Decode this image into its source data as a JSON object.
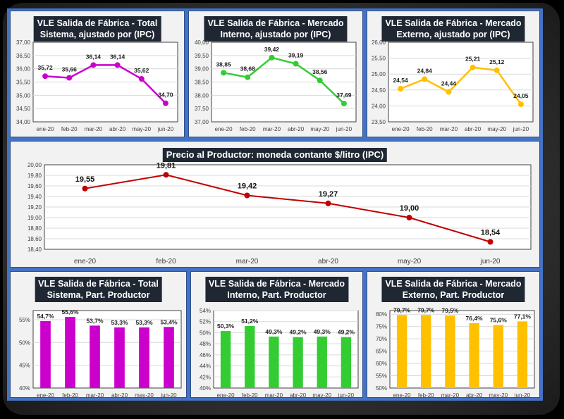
{
  "colors": {
    "frame": "#4472c4",
    "magenta": "#cc00cc",
    "green": "#33cc33",
    "gold": "#ffc000",
    "red": "#c00000"
  },
  "chart_data": [
    {
      "id": "total-ipc",
      "type": "line",
      "title_line1": "VLE Salida de Fábrica - Total",
      "title_line2": "Sistema, ajustado por (IPC)",
      "categories": [
        "ene-20",
        "feb-20",
        "mar-20",
        "abr-20",
        "may-20",
        "jun-20"
      ],
      "values": [
        35.72,
        35.66,
        36.14,
        36.14,
        35.62,
        34.7
      ],
      "labels": [
        "35,72",
        "35,66",
        "36,14",
        "36,14",
        "35,62",
        "34,70"
      ],
      "ylim": [
        34.0,
        37.0
      ],
      "yticks": [
        "34,00",
        "34,50",
        "35,00",
        "35,50",
        "36,00",
        "36,50",
        "37,00"
      ],
      "color_key": "magenta",
      "grid": true
    },
    {
      "id": "interno-ipc",
      "type": "line",
      "title_line1": "VLE Salida de Fábrica - Mercado",
      "title_line2": "Interno, ajustado por (IPC)",
      "categories": [
        "ene-20",
        "feb-20",
        "mar-20",
        "abr-20",
        "may-20",
        "jun-20"
      ],
      "values": [
        38.85,
        38.68,
        39.42,
        39.19,
        38.56,
        37.69
      ],
      "labels": [
        "38,85",
        "38,68",
        "39,42",
        "39,19",
        "38,56",
        "37,69"
      ],
      "ylim": [
        37.0,
        40.0
      ],
      "yticks": [
        "37,00",
        "37,50",
        "38,00",
        "38,50",
        "39,00",
        "39,50",
        "40,00"
      ],
      "color_key": "green",
      "grid": true
    },
    {
      "id": "externo-ipc",
      "type": "line",
      "title_line1": "VLE Salida de Fábrica - Mercado",
      "title_line2": "Externo, ajustado por (IPC)",
      "categories": [
        "ene-20",
        "feb-20",
        "mar-20",
        "abr-20",
        "may-20",
        "jun-20"
      ],
      "values": [
        24.54,
        24.84,
        24.44,
        25.21,
        25.12,
        24.05
      ],
      "labels": [
        "24,54",
        "24,84",
        "24,44",
        "25,21",
        "25,12",
        "24,05"
      ],
      "ylim": [
        23.5,
        26.0
      ],
      "yticks": [
        "23,50",
        "24,00",
        "24,50",
        "25,00",
        "25,50",
        "26,00"
      ],
      "color_key": "gold",
      "grid": true
    },
    {
      "id": "precio-productor",
      "type": "line",
      "title_line1": "Precio al Productor: moneda contante $/litro (IPC)",
      "title_line2": "",
      "categories": [
        "ene-20",
        "feb-20",
        "mar-20",
        "abr-20",
        "may-20",
        "jun-20"
      ],
      "values": [
        19.55,
        19.81,
        19.42,
        19.27,
        19.0,
        18.54
      ],
      "labels": [
        "19,55",
        "19,81",
        "19,42",
        "19,27",
        "19,00",
        "18,54"
      ],
      "ylim": [
        18.4,
        20.0
      ],
      "yticks": [
        "18,40",
        "18,60",
        "18,80",
        "19,00",
        "19,20",
        "19,40",
        "19,60",
        "19,80",
        "20,00"
      ],
      "color_key": "red",
      "grid": true
    },
    {
      "id": "total-part",
      "type": "bar",
      "title_line1": "VLE Salida de Fábrica - Total",
      "title_line2": "Sistema, Part. Productor",
      "categories": [
        "ene-20",
        "feb-20",
        "mar-20",
        "abr-20",
        "may-20",
        "jun-20"
      ],
      "values": [
        54.7,
        55.6,
        53.7,
        53.3,
        53.3,
        53.4
      ],
      "labels": [
        "54,7%",
        "55,6%",
        "53,7%",
        "53,3%",
        "53,3%",
        "53,4%"
      ],
      "ylim": [
        40,
        57
      ],
      "ytick_values": [
        40,
        45,
        50,
        55
      ],
      "yticks": [
        "40%",
        "45%",
        "50%",
        "55%"
      ],
      "color_key": "magenta",
      "grid": true
    },
    {
      "id": "interno-part",
      "type": "bar",
      "title_line1": "VLE Salida de Fábrica - Mercado",
      "title_line2": "Interno, Part. Productor",
      "categories": [
        "ene-20",
        "feb-20",
        "mar-20",
        "abr-20",
        "may-20",
        "jun-20"
      ],
      "values": [
        50.3,
        51.2,
        49.3,
        49.2,
        49.3,
        49.2
      ],
      "labels": [
        "50,3%",
        "51,2%",
        "49,3%",
        "49,2%",
        "49,3%",
        "49,2%"
      ],
      "ylim": [
        40,
        54
      ],
      "ytick_values": [
        40,
        42,
        44,
        46,
        48,
        50,
        52,
        54
      ],
      "yticks": [
        "40%",
        "42%",
        "44%",
        "46%",
        "48%",
        "50%",
        "52%",
        "54%"
      ],
      "color_key": "green",
      "grid": true
    },
    {
      "id": "externo-part",
      "type": "bar",
      "title_line1": "VLE Salida de Fábrica - Mercado",
      "title_line2": "Externo, Part. Productor",
      "categories": [
        "ene-20",
        "feb-20",
        "mar-20",
        "abr-20",
        "may-20",
        "jun-20"
      ],
      "values": [
        79.7,
        79.7,
        79.5,
        76.4,
        75.6,
        77.1
      ],
      "labels": [
        "79,7%",
        "79,7%",
        "79,5%",
        "76,4%",
        "75,6%",
        "77,1%"
      ],
      "ylim": [
        50,
        81.5
      ],
      "ytick_values": [
        50,
        55,
        60,
        65,
        70,
        75,
        80
      ],
      "yticks": [
        "50%",
        "55%",
        "60%",
        "65%",
        "70%",
        "75%",
        "80%"
      ],
      "color_key": "gold",
      "grid": true
    }
  ]
}
